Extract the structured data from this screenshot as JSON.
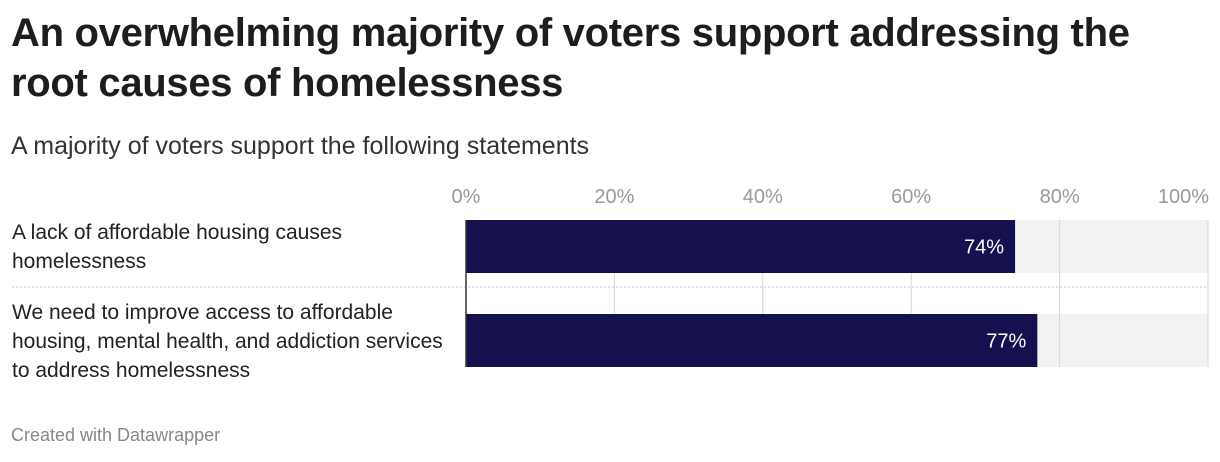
{
  "title": "An overwhelming majority of voters support addressing the root causes of homelessness",
  "subtitle": "A majority of voters support the following statements",
  "footer": "Created with Datawrapper",
  "colors": {
    "bar": "#15114f",
    "track": "#f2f2f2",
    "grid": "#d6d6d6",
    "separator": "#d9b8d0"
  },
  "chart_data": {
    "type": "bar",
    "orientation": "horizontal",
    "categories": [
      "A lack of affordable housing causes homelessness",
      "We need to improve access to affordable housing, mental health, and addiction services to address homelessness"
    ],
    "values": [
      74,
      77
    ],
    "value_labels": [
      "74%",
      "77%"
    ],
    "xlim": [
      0,
      100
    ],
    "x_ticks": [
      0,
      20,
      40,
      60,
      80,
      100
    ],
    "x_tick_labels": [
      "0%",
      "20%",
      "40%",
      "60%",
      "80%",
      "100%"
    ],
    "grid": true,
    "axis_position": "top"
  }
}
